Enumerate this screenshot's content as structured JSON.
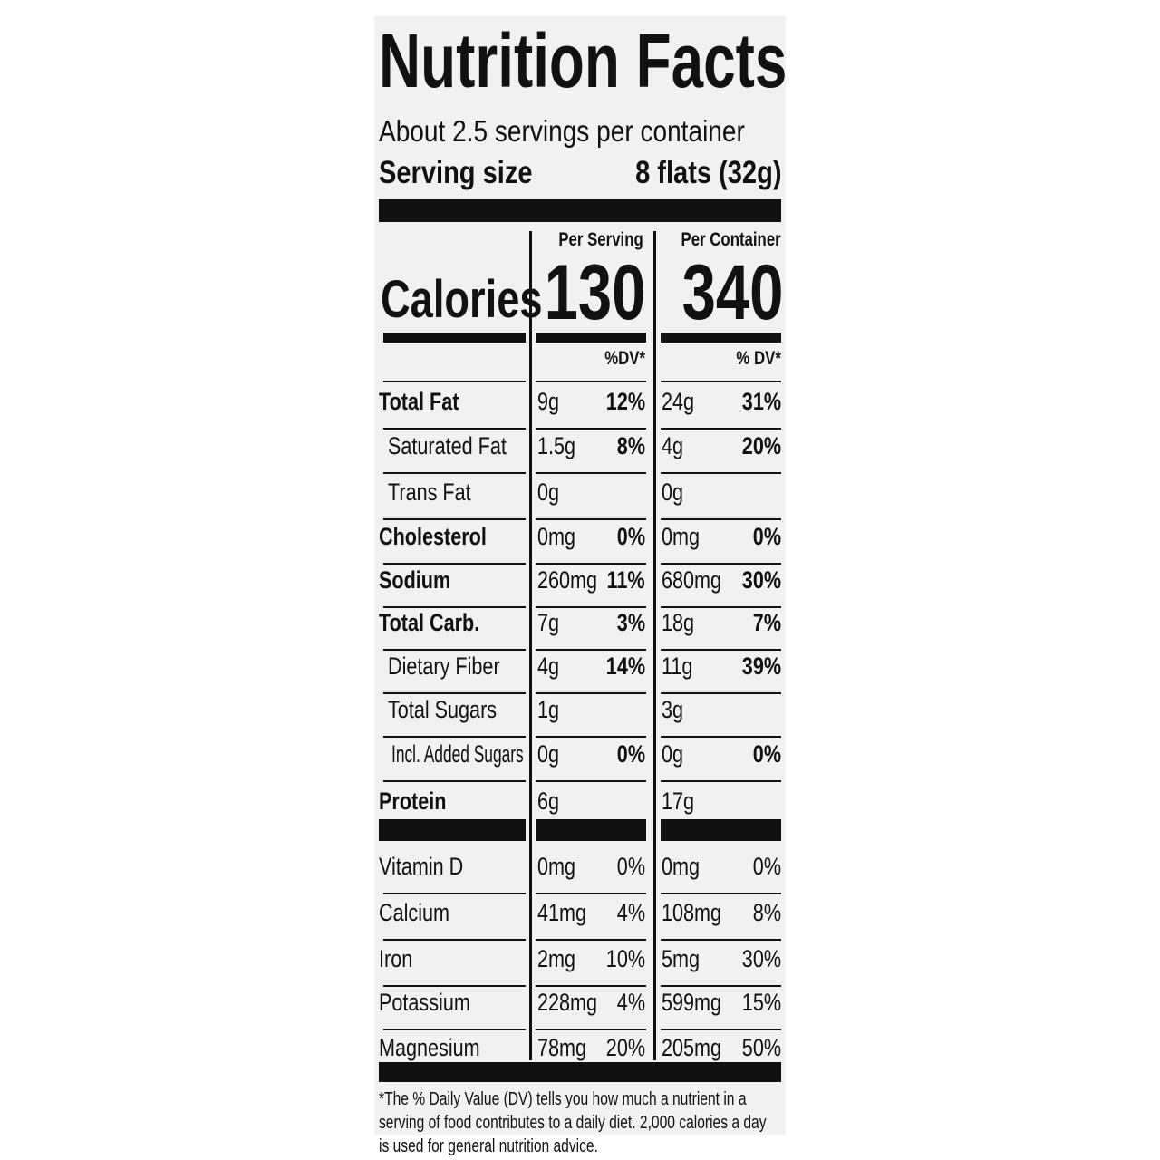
{
  "title": "Nutrition Facts",
  "servings_per_container": "About 2.5 servings per container",
  "serving_size": {
    "label": "Serving size",
    "value": "8 flats (32g)"
  },
  "columns": {
    "per_serving": "Per Serving",
    "per_container": "Per Container"
  },
  "calories": {
    "label": "Calories",
    "per_serving": "130",
    "per_container": "340"
  },
  "dv_headers": {
    "per_serving": "%DV*",
    "per_container": "% DV*"
  },
  "nutrients": [
    {
      "name": "Total Fat",
      "bold": true,
      "indent": 0,
      "serving_amount": "9g",
      "serving_dv": "12%",
      "container_amount": "24g",
      "container_dv": "31%"
    },
    {
      "name": "Saturated Fat",
      "bold": false,
      "indent": 1,
      "serving_amount": "1.5g",
      "serving_dv": "8%",
      "container_amount": "4g",
      "container_dv": "20%"
    },
    {
      "name": "Trans Fat",
      "bold": false,
      "indent": 1,
      "serving_amount": "0g",
      "serving_dv": "",
      "container_amount": "0g",
      "container_dv": ""
    },
    {
      "name": "Cholesterol",
      "bold": true,
      "indent": 0,
      "serving_amount": "0mg",
      "serving_dv": "0%",
      "container_amount": "0mg",
      "container_dv": "0%"
    },
    {
      "name": "Sodium",
      "bold": true,
      "indent": 0,
      "serving_amount": "260mg",
      "serving_dv": "11%",
      "container_amount": "680mg",
      "container_dv": "30%"
    },
    {
      "name": "Total Carb.",
      "bold": true,
      "indent": 0,
      "serving_amount": "7g",
      "serving_dv": "3%",
      "container_amount": "18g",
      "container_dv": "7%"
    },
    {
      "name": "Dietary Fiber",
      "bold": false,
      "indent": 1,
      "serving_amount": "4g",
      "serving_dv": "14%",
      "container_amount": "11g",
      "container_dv": "39%"
    },
    {
      "name": "Total Sugars",
      "bold": false,
      "indent": 1,
      "serving_amount": "1g",
      "serving_dv": "",
      "container_amount": "3g",
      "container_dv": ""
    },
    {
      "name": "Incl. Added Sugars",
      "bold": false,
      "indent": 2,
      "serving_amount": "0g",
      "serving_dv": "0%",
      "container_amount": "0g",
      "container_dv": "0%"
    },
    {
      "name": "Protein",
      "bold": true,
      "indent": 0,
      "serving_amount": "6g",
      "serving_dv": "",
      "container_amount": "17g",
      "container_dv": ""
    }
  ],
  "vitamins": [
    {
      "name": "Vitamin D",
      "serving_amount": "0mg",
      "serving_dv": "0%",
      "container_amount": "0mg",
      "container_dv": "0%"
    },
    {
      "name": "Calcium",
      "serving_amount": "41mg",
      "serving_dv": "4%",
      "container_amount": "108mg",
      "container_dv": "8%"
    },
    {
      "name": "Iron",
      "serving_amount": "2mg",
      "serving_dv": "10%",
      "container_amount": "5mg",
      "container_dv": "30%"
    },
    {
      "name": "Potassium",
      "serving_amount": "228mg",
      "serving_dv": "4%",
      "container_amount": "599mg",
      "container_dv": "15%"
    },
    {
      "name": "Magnesium",
      "serving_amount": "78mg",
      "serving_dv": "20%",
      "container_amount": "205mg",
      "container_dv": "50%"
    }
  ],
  "footnote": "*The % Daily Value (DV) tells you how much a nutrient in a serving of food contributes to a daily diet. 2,000 calories a day is used for general nutrition advice.",
  "colors": {
    "ink": "#111111",
    "label_bg": "#f1f1f1"
  }
}
